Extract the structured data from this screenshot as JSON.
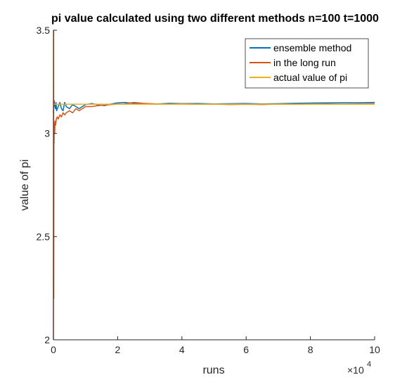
{
  "chart_data": {
    "type": "line",
    "title": "pi value calculated using two different methods n=100  t=1000",
    "xlabel": "runs",
    "ylabel": "value of pi",
    "xlim": [
      0,
      100000
    ],
    "ylim": [
      2,
      3.5
    ],
    "x_ticks": [
      0,
      20000,
      40000,
      60000,
      80000,
      100000
    ],
    "x_tick_labels": [
      "0",
      "2",
      "4",
      "6",
      "8",
      "10"
    ],
    "x_exponent_label": "×10",
    "x_exponent_power": "4",
    "y_ticks": [
      2,
      2.5,
      3,
      3.5
    ],
    "y_tick_labels": [
      "2",
      "2.5",
      "3",
      "3.5"
    ],
    "grid": false,
    "legend_position": "top-right",
    "series": [
      {
        "name": "ensemble method",
        "color": "#0072BD",
        "x": [
          0,
          200,
          400,
          600,
          800,
          1000,
          1500,
          2000,
          2500,
          3000,
          3500,
          4000,
          5000,
          6000,
          7000,
          8000,
          9000,
          10000,
          12000,
          14000,
          16000,
          18000,
          20000,
          22000,
          25000,
          28000,
          32000,
          36000,
          40000,
          45000,
          50000,
          55000,
          60000,
          65000,
          70000,
          75000,
          80000,
          85000,
          90000,
          95000,
          100000
        ],
        "y": [
          3.1,
          3.16,
          3.14,
          3.12,
          3.15,
          3.11,
          3.13,
          3.15,
          3.12,
          3.11,
          3.15,
          3.13,
          3.12,
          3.14,
          3.13,
          3.12,
          3.13,
          3.14,
          3.145,
          3.138,
          3.135,
          3.143,
          3.148,
          3.15,
          3.146,
          3.144,
          3.142,
          3.146,
          3.144,
          3.145,
          3.143,
          3.144,
          3.145,
          3.143,
          3.144,
          3.146,
          3.147,
          3.148,
          3.149,
          3.149,
          3.15
        ]
      },
      {
        "name": "in the long run",
        "color": "#D95319",
        "x": [
          0,
          50,
          100,
          150,
          200,
          300,
          400,
          500,
          700,
          900,
          1200,
          1500,
          2000,
          2500,
          3000,
          3500,
          4000,
          5000,
          6000,
          7000,
          8000,
          9000,
          10000,
          12000,
          14000,
          16000,
          18000,
          20000,
          22000,
          25000,
          28000,
          32000,
          36000,
          40000,
          45000,
          50000,
          55000,
          60000,
          65000,
          70000,
          75000,
          80000,
          85000,
          90000,
          95000,
          100000
        ],
        "y": [
          2.0,
          3.5,
          2.2,
          3.0,
          2.95,
          3.05,
          3.0,
          3.06,
          3.04,
          3.07,
          3.08,
          3.07,
          3.09,
          3.08,
          3.1,
          3.09,
          3.1,
          3.11,
          3.1,
          3.12,
          3.11,
          3.12,
          3.13,
          3.13,
          3.135,
          3.138,
          3.14,
          3.142,
          3.143,
          3.15,
          3.146,
          3.143,
          3.142,
          3.143,
          3.141,
          3.142,
          3.14,
          3.141,
          3.14,
          3.142,
          3.141,
          3.142,
          3.143,
          3.142,
          3.143,
          3.144
        ]
      },
      {
        "name": "actual value of pi",
        "color": "#EDB120",
        "x": [
          0,
          100000
        ],
        "y": [
          3.14159,
          3.14159
        ]
      }
    ]
  }
}
